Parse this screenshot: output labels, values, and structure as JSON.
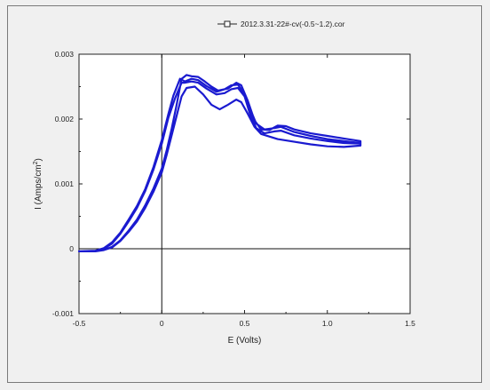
{
  "chart_data": {
    "type": "line",
    "title": "",
    "xlabel": "E (Volts)",
    "ylabel_main": "I (Amps/cm",
    "ylabel_sup": "2",
    "ylabel_tail": ")",
    "xlim": [
      -0.5,
      1.5
    ],
    "ylim": [
      -0.001,
      0.003
    ],
    "x_ticks": [
      -0.5,
      0,
      0.5,
      1.0,
      1.5
    ],
    "x_tick_labels": [
      "-0.5",
      "0",
      "0.5",
      "1.0",
      "1.5"
    ],
    "y_ticks": [
      -0.001,
      0,
      0.001,
      0.002,
      0.003
    ],
    "y_tick_labels": [
      "-0.001",
      "0",
      "0.001",
      "0.002",
      "0.003"
    ],
    "grid": false,
    "legend": {
      "position": "top-right",
      "entries": [
        "2012.3.31-22#-cv(-0.5~1.2).cor"
      ]
    },
    "line_color": "#1a1ad0",
    "series": [
      {
        "name": "2012.3.31-22#-cv(-0.5~1.2).cor",
        "points": [
          [
            -0.5,
            -4e-05
          ],
          [
            -0.4,
            -4e-05
          ],
          [
            -0.35,
            -2e-05
          ],
          [
            -0.3,
            2e-05
          ],
          [
            -0.25,
            0.00012
          ],
          [
            -0.2,
            0.00026
          ],
          [
            -0.15,
            0.00042
          ],
          [
            -0.1,
            0.00063
          ],
          [
            -0.05,
            0.00088
          ],
          [
            0.0,
            0.00118
          ],
          [
            0.03,
            0.00145
          ],
          [
            0.06,
            0.00175
          ],
          [
            0.09,
            0.00205
          ],
          [
            0.12,
            0.00235
          ],
          [
            0.15,
            0.00248
          ],
          [
            0.2,
            0.0025
          ],
          [
            0.25,
            0.00238
          ],
          [
            0.3,
            0.00222
          ],
          [
            0.35,
            0.00215
          ],
          [
            0.4,
            0.00222
          ],
          [
            0.45,
            0.0023
          ],
          [
            0.48,
            0.00226
          ],
          [
            0.52,
            0.00208
          ],
          [
            0.56,
            0.00188
          ],
          [
            0.6,
            0.00177
          ],
          [
            0.7,
            0.00169
          ],
          [
            0.8,
            0.00165
          ],
          [
            0.9,
            0.00161
          ],
          [
            1.0,
            0.00158
          ],
          [
            1.1,
            0.00157
          ],
          [
            1.2,
            0.00159
          ],
          [
            1.2,
            0.00163
          ],
          [
            1.1,
            0.00166
          ],
          [
            1.0,
            0.00169
          ],
          [
            0.9,
            0.00174
          ],
          [
            0.8,
            0.0018
          ],
          [
            0.72,
            0.00188
          ],
          [
            0.68,
            0.00186
          ],
          [
            0.62,
            0.00184
          ],
          [
            0.57,
            0.00193
          ],
          [
            0.53,
            0.00218
          ],
          [
            0.49,
            0.00242
          ],
          [
            0.46,
            0.00253
          ],
          [
            0.42,
            0.00252
          ],
          [
            0.38,
            0.00246
          ],
          [
            0.33,
            0.00242
          ],
          [
            0.27,
            0.00251
          ],
          [
            0.22,
            0.0026
          ],
          [
            0.18,
            0.00262
          ],
          [
            0.14,
            0.00258
          ],
          [
            0.11,
            0.00262
          ],
          [
            0.07,
            0.00236
          ],
          [
            0.04,
            0.00208
          ],
          [
            0.0,
            0.00168
          ],
          [
            -0.05,
            0.00126
          ],
          [
            -0.1,
            0.00092
          ],
          [
            -0.15,
            0.00066
          ],
          [
            -0.2,
            0.00045
          ],
          [
            -0.25,
            0.00025
          ],
          [
            -0.3,
            0.0001
          ],
          [
            -0.35,
            1e-05
          ],
          [
            -0.4,
            -3e-05
          ],
          [
            -0.5,
            -4e-05
          ],
          [
            -0.4,
            -4e-05
          ],
          [
            -0.35,
            -2e-05
          ],
          [
            -0.3,
            3e-05
          ],
          [
            -0.25,
            0.00013
          ],
          [
            -0.2,
            0.00028
          ],
          [
            -0.15,
            0.00045
          ],
          [
            -0.1,
            0.00067
          ],
          [
            -0.05,
            0.00093
          ],
          [
            0.0,
            0.00124
          ],
          [
            0.03,
            0.00152
          ],
          [
            0.06,
            0.00185
          ],
          [
            0.09,
            0.00222
          ],
          [
            0.12,
            0.00262
          ],
          [
            0.15,
            0.00268
          ],
          [
            0.18,
            0.00266
          ],
          [
            0.22,
            0.00265
          ],
          [
            0.26,
            0.00258
          ],
          [
            0.3,
            0.0025
          ],
          [
            0.34,
            0.00244
          ],
          [
            0.4,
            0.00247
          ],
          [
            0.45,
            0.00256
          ],
          [
            0.48,
            0.00252
          ],
          [
            0.52,
            0.00228
          ],
          [
            0.56,
            0.00198
          ],
          [
            0.6,
            0.00184
          ],
          [
            0.65,
            0.00183
          ],
          [
            0.7,
            0.0019
          ],
          [
            0.75,
            0.00189
          ],
          [
            0.8,
            0.00184
          ],
          [
            0.9,
            0.00178
          ],
          [
            1.0,
            0.00174
          ],
          [
            1.1,
            0.0017
          ],
          [
            1.2,
            0.00166
          ],
          [
            1.2,
            0.00162
          ],
          [
            1.1,
            0.00163
          ],
          [
            1.0,
            0.00166
          ],
          [
            0.9,
            0.0017
          ],
          [
            0.8,
            0.00175
          ],
          [
            0.72,
            0.00182
          ],
          [
            0.68,
            0.00181
          ],
          [
            0.62,
            0.00178
          ],
          [
            0.57,
            0.00186
          ],
          [
            0.53,
            0.0021
          ],
          [
            0.5,
            0.00235
          ],
          [
            0.46,
            0.00248
          ],
          [
            0.42,
            0.00246
          ],
          [
            0.38,
            0.0024
          ],
          [
            0.33,
            0.00238
          ],
          [
            0.27,
            0.00247
          ],
          [
            0.22,
            0.00256
          ],
          [
            0.18,
            0.00258
          ],
          [
            0.14,
            0.00256
          ],
          [
            0.12,
            0.00256
          ],
          [
            0.08,
            0.00232
          ],
          [
            0.04,
            0.00202
          ],
          [
            0.0,
            0.00162
          ],
          [
            -0.05,
            0.00122
          ],
          [
            -0.1,
            0.00089
          ],
          [
            -0.15,
            0.00063
          ],
          [
            -0.2,
            0.00042
          ],
          [
            -0.25,
            0.00023
          ],
          [
            -0.3,
            8e-05
          ],
          [
            -0.35,
            0.0
          ],
          [
            -0.4,
            -3e-05
          ],
          [
            -0.5,
            -4e-05
          ]
        ]
      }
    ]
  }
}
